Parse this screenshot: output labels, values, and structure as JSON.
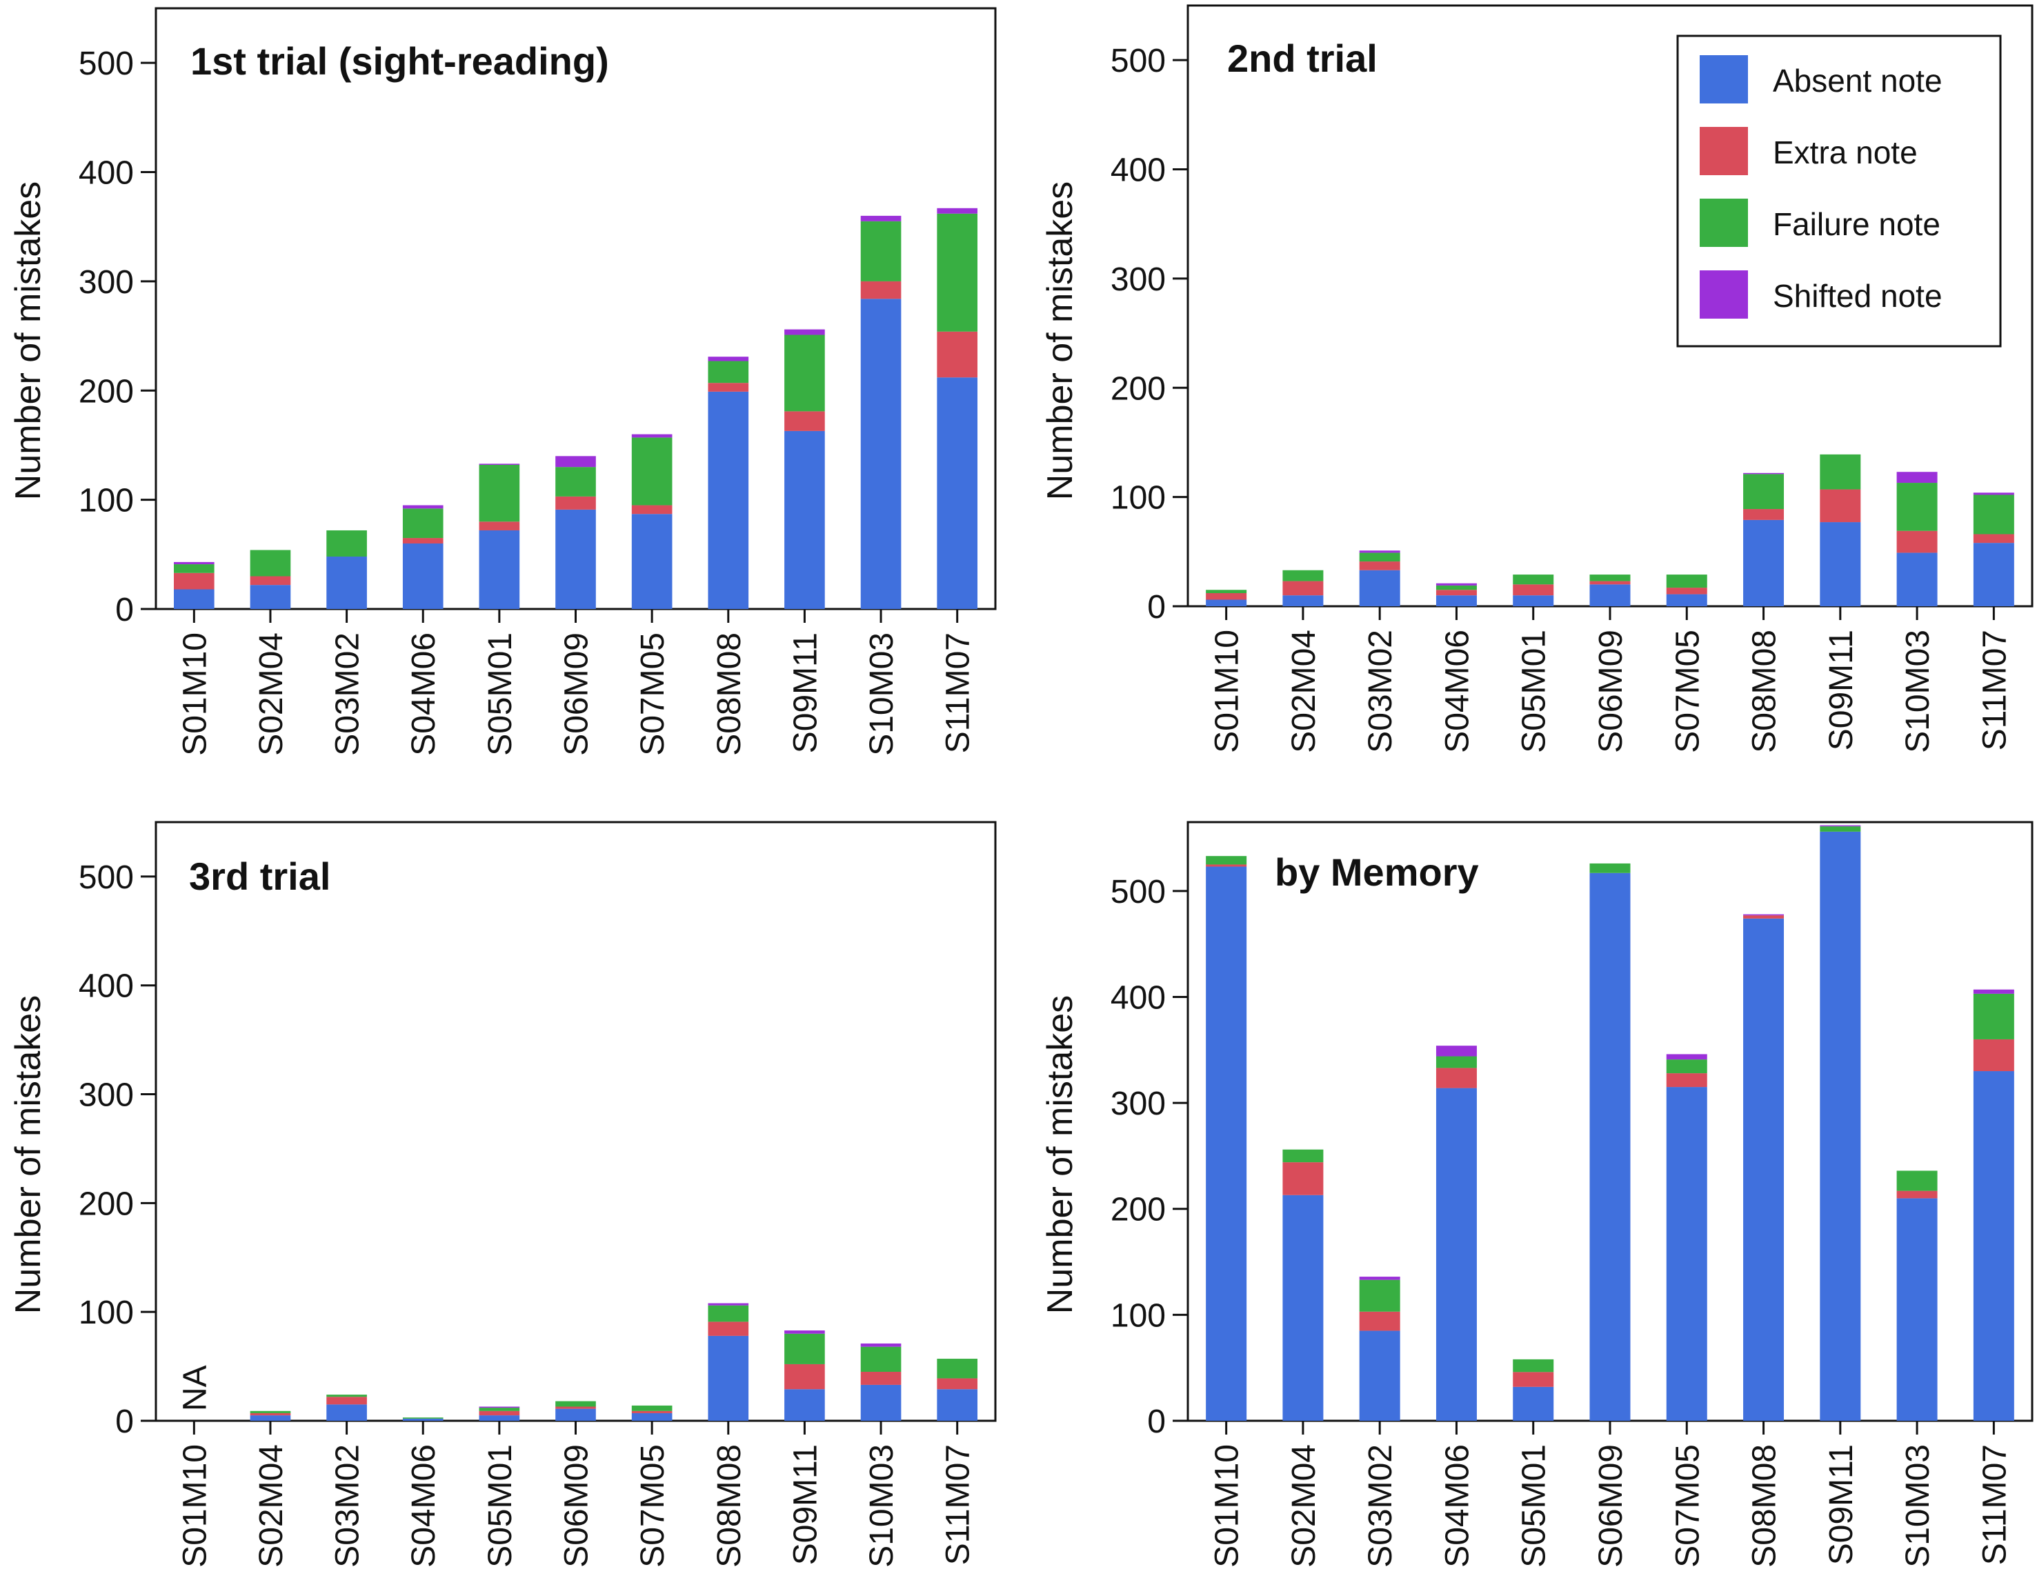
{
  "chart_data": [
    {
      "type": "bar",
      "stacked": true,
      "title": "1st trial (sight-reading)",
      "xlabel": "",
      "ylabel": "Number of mistakes",
      "ylim": [
        0,
        550
      ],
      "yticks": [
        0,
        100,
        200,
        300,
        400,
        500
      ],
      "categories": [
        "S01M10",
        "S02M04",
        "S03M02",
        "S04M06",
        "S05M01",
        "S06M09",
        "S07M05",
        "S08M08",
        "S09M11",
        "S10M03",
        "S11M07"
      ],
      "series": [
        {
          "name": "Absent note",
          "values": [
            18,
            22,
            48,
            60,
            72,
            91,
            87,
            199,
            163,
            284,
            212
          ]
        },
        {
          "name": "Extra note",
          "values": [
            15,
            8,
            0,
            5,
            8,
            12,
            8,
            8,
            18,
            16,
            42
          ]
        },
        {
          "name": "Failure note",
          "values": [
            8,
            24,
            24,
            27,
            52,
            27,
            62,
            20,
            70,
            55,
            108
          ]
        },
        {
          "name": "Shifted note",
          "values": [
            2,
            0,
            0,
            3,
            1,
            10,
            3,
            4,
            5,
            5,
            5
          ]
        }
      ]
    },
    {
      "type": "bar",
      "stacked": true,
      "title": "2nd trial",
      "xlabel": "",
      "ylabel": "Number of mistakes",
      "ylim": [
        0,
        550
      ],
      "yticks": [
        0,
        100,
        200,
        300,
        400,
        500
      ],
      "categories": [
        "S01M10",
        "S02M04",
        "S03M02",
        "S04M06",
        "S05M01",
        "S06M09",
        "S07M05",
        "S08M08",
        "S09M11",
        "S10M03",
        "S11M07"
      ],
      "series": [
        {
          "name": "Absent note",
          "values": [
            6,
            10,
            33,
            10,
            10,
            20,
            11,
            79,
            77,
            49,
            58
          ]
        },
        {
          "name": "Extra note",
          "values": [
            6,
            13,
            8,
            5,
            10,
            3,
            6,
            10,
            30,
            20,
            8
          ]
        },
        {
          "name": "Failure note",
          "values": [
            3,
            10,
            8,
            4,
            9,
            6,
            12,
            32,
            32,
            44,
            36
          ]
        },
        {
          "name": "Shifted note",
          "values": [
            0,
            0,
            2,
            2,
            0,
            0,
            0,
            1,
            0,
            10,
            2
          ]
        }
      ]
    },
    {
      "type": "bar",
      "stacked": true,
      "title": "3rd trial",
      "xlabel": "",
      "ylabel": "Number of mistakes",
      "ylim": [
        0,
        550
      ],
      "yticks": [
        0,
        100,
        200,
        300,
        400,
        500
      ],
      "categories": [
        "S01M10",
        "S02M04",
        "S03M02",
        "S04M06",
        "S05M01",
        "S06M09",
        "S07M05",
        "S08M08",
        "S09M11",
        "S10M03",
        "S11M07"
      ],
      "annotations": [
        {
          "category": "S01M10",
          "text": "NA"
        }
      ],
      "series": [
        {
          "name": "Absent note",
          "values": [
            0,
            5,
            15,
            2,
            5,
            11,
            7,
            78,
            29,
            33,
            29
          ]
        },
        {
          "name": "Extra note",
          "values": [
            0,
            2,
            7,
            0,
            4,
            2,
            2,
            13,
            23,
            12,
            10
          ]
        },
        {
          "name": "Failure note",
          "values": [
            0,
            2,
            2,
            1,
            3,
            5,
            5,
            15,
            28,
            23,
            18
          ]
        },
        {
          "name": "Shifted note",
          "values": [
            0,
            0,
            0,
            0,
            1,
            0,
            0,
            2,
            3,
            3,
            0
          ]
        }
      ]
    },
    {
      "type": "bar",
      "stacked": true,
      "title": "by Memory",
      "xlabel": "",
      "ylabel": "Number of mistakes",
      "ylim": [
        0,
        565
      ],
      "yticks": [
        0,
        100,
        200,
        300,
        400,
        500
      ],
      "categories": [
        "S01M10",
        "S02M04",
        "S03M02",
        "S04M06",
        "S05M01",
        "S06M09",
        "S07M05",
        "S08M08",
        "S09M11",
        "S10M03",
        "S11M07"
      ],
      "series": [
        {
          "name": "Absent note",
          "values": [
            523,
            213,
            85,
            314,
            32,
            517,
            315,
            474,
            556,
            210,
            330
          ]
        },
        {
          "name": "Extra note",
          "values": [
            2,
            31,
            18,
            19,
            14,
            0,
            13,
            3,
            0,
            7,
            30
          ]
        },
        {
          "name": "Failure note",
          "values": [
            8,
            12,
            30,
            11,
            12,
            9,
            13,
            0,
            5,
            19,
            43
          ]
        },
        {
          "name": "Shifted note",
          "values": [
            0,
            0,
            3,
            10,
            0,
            0,
            5,
            1,
            1,
            0,
            4
          ]
        }
      ]
    }
  ],
  "legend": {
    "placement": "top-right of 2nd trial panel",
    "entries": [
      {
        "name": "Absent note",
        "color": "#4070DD"
      },
      {
        "name": "Extra note",
        "color": "#D94C5A"
      },
      {
        "name": "Failure note",
        "color": "#38AF42"
      },
      {
        "name": "Shifted note",
        "color": "#9B30D9"
      }
    ]
  }
}
